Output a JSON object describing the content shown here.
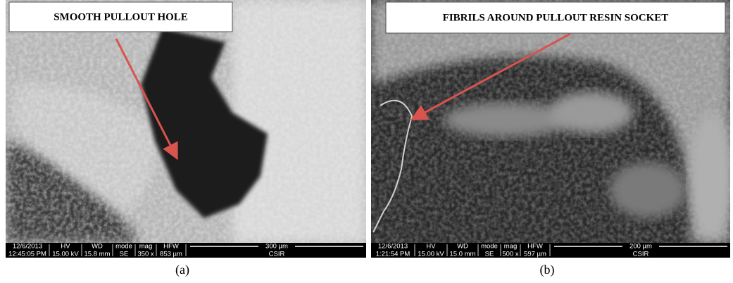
{
  "panels": [
    {
      "label": "SMOOTH PULLOUT HOLE",
      "caption": "(a)",
      "info": [
        [
          "12/6/2013",
          "12:45:05 PM"
        ],
        [
          "HV",
          "15.00 kV"
        ],
        [
          "WD",
          "15.8 mm"
        ],
        [
          "mode",
          "SE"
        ],
        [
          "mag",
          "350 x"
        ],
        [
          "HFW",
          "853 µm"
        ]
      ],
      "scale": "300 µm",
      "org": "CSIR"
    },
    {
      "label": "FIBRILS AROUND PULLOUT RESIN SOCKET",
      "caption": "(b)",
      "info": [
        [
          "12/6/2013",
          "1:21:54 PM"
        ],
        [
          "HV",
          "15.00 kV"
        ],
        [
          "WD",
          "15.0 mm"
        ],
        [
          "mode",
          "SE"
        ],
        [
          "mag",
          "500 x"
        ],
        [
          "HFW",
          "597 µm"
        ]
      ],
      "scale": "200 µm",
      "org": "CSIR"
    }
  ]
}
